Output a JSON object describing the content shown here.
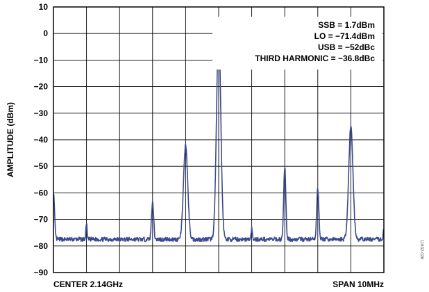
{
  "chart_data": {
    "type": "line",
    "title": "",
    "ylabel": "AMPLITUDE (dBm)",
    "xlabel_left": "CENTER 2.14GHz",
    "xlabel_right": "SPAN 10MHz",
    "ylim": [
      -90,
      10
    ],
    "yticks": [
      "10",
      "0",
      "−10",
      "−20",
      "−30",
      "−40",
      "−50",
      "−60",
      "−70",
      "−80",
      "−90"
    ],
    "xlim": [
      -5,
      5
    ],
    "x_unit": "MHz offset from center",
    "grid": true,
    "noise_floor_dBm": -77.5,
    "series": [
      {
        "peaks": [
          {
            "x": -5.0,
            "y": -60
          },
          {
            "x": -4.0,
            "y": -71
          },
          {
            "x": -2.0,
            "y": -63
          },
          {
            "x": -1.0,
            "y": -42
          },
          {
            "x": 0.0,
            "y": 1.7
          },
          {
            "x": 1.0,
            "y": -73
          },
          {
            "x": 2.0,
            "y": -50
          },
          {
            "x": 3.0,
            "y": -58
          },
          {
            "x": 4.0,
            "y": -34.8
          },
          {
            "x": 5.0,
            "y": -73
          }
        ],
        "color": "#3b4a92"
      }
    ],
    "annotations": [
      "SSB = 1.7dBm",
      "LO = −71.4dBm",
      "USB = −52dBc",
      "THIRD HARMONIC = −36.8dBc"
    ],
    "figure_id": "11632-026"
  }
}
